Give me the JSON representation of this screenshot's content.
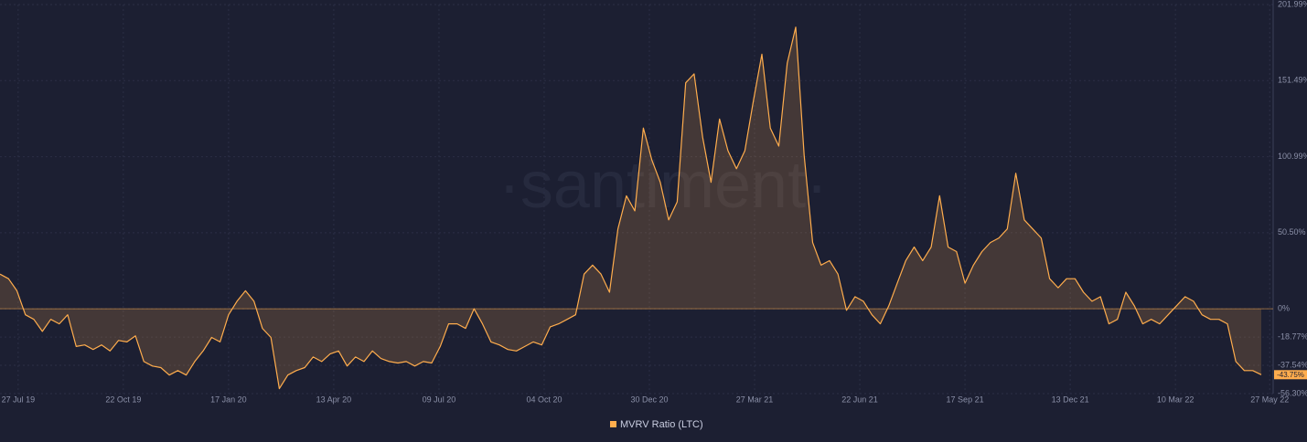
{
  "chart_data": {
    "type": "area",
    "watermark": "·santiment·",
    "x": [
      "2019-07-12",
      "2019-07-19",
      "2019-07-26",
      "2019-08-02",
      "2019-08-09",
      "2019-08-16",
      "2019-08-23",
      "2019-08-30",
      "2019-09-06",
      "2019-09-13",
      "2019-09-20",
      "2019-09-27",
      "2019-10-04",
      "2019-10-11",
      "2019-10-18",
      "2019-10-25",
      "2019-11-01",
      "2019-11-08",
      "2019-11-15",
      "2019-11-22",
      "2019-11-29",
      "2019-12-06",
      "2019-12-13",
      "2019-12-20",
      "2019-12-27",
      "2020-01-03",
      "2020-01-10",
      "2020-01-17",
      "2020-01-24",
      "2020-01-31",
      "2020-02-07",
      "2020-02-14",
      "2020-02-21",
      "2020-02-28",
      "2020-03-06",
      "2020-03-13",
      "2020-03-20",
      "2020-03-27",
      "2020-04-03",
      "2020-04-10",
      "2020-04-17",
      "2020-04-24",
      "2020-05-01",
      "2020-05-08",
      "2020-05-15",
      "2020-05-22",
      "2020-05-29",
      "2020-06-05",
      "2020-06-12",
      "2020-06-19",
      "2020-06-26",
      "2020-07-03",
      "2020-07-10",
      "2020-07-17",
      "2020-07-24",
      "2020-07-31",
      "2020-08-07",
      "2020-08-14",
      "2020-08-21",
      "2020-08-28",
      "2020-09-04",
      "2020-09-11",
      "2020-09-18",
      "2020-09-25",
      "2020-10-02",
      "2020-10-09",
      "2020-10-16",
      "2020-10-23",
      "2020-10-30",
      "2020-11-06",
      "2020-11-13",
      "2020-11-20",
      "2020-11-27",
      "2020-12-04",
      "2020-12-11",
      "2020-12-18",
      "2020-12-25",
      "2021-01-01",
      "2021-01-08",
      "2021-01-15",
      "2021-01-22",
      "2021-01-29",
      "2021-02-05",
      "2021-02-12",
      "2021-02-19",
      "2021-02-26",
      "2021-03-05",
      "2021-03-12",
      "2021-03-19",
      "2021-03-26",
      "2021-04-02",
      "2021-04-09",
      "2021-04-16",
      "2021-04-23",
      "2021-04-30",
      "2021-05-07",
      "2021-05-14",
      "2021-05-21",
      "2021-05-28",
      "2021-06-04",
      "2021-06-11",
      "2021-06-18",
      "2021-06-25",
      "2021-07-02",
      "2021-07-09",
      "2021-07-16",
      "2021-07-23",
      "2021-07-30",
      "2021-08-06",
      "2021-08-13",
      "2021-08-20",
      "2021-08-27",
      "2021-09-03",
      "2021-09-10",
      "2021-09-17",
      "2021-09-24",
      "2021-10-01",
      "2021-10-08",
      "2021-10-15",
      "2021-10-22",
      "2021-10-29",
      "2021-11-05",
      "2021-11-12",
      "2021-11-19",
      "2021-11-26",
      "2021-12-03",
      "2021-12-10",
      "2021-12-17",
      "2021-12-24",
      "2021-12-31",
      "2022-01-07",
      "2022-01-14",
      "2022-01-21",
      "2022-01-28",
      "2022-02-04",
      "2022-02-11",
      "2022-02-18",
      "2022-02-25",
      "2022-03-04",
      "2022-03-11",
      "2022-03-18",
      "2022-03-25",
      "2022-04-01",
      "2022-04-08",
      "2022-04-15",
      "2022-04-22",
      "2022-04-29",
      "2022-05-06",
      "2022-05-13",
      "2022-05-20"
    ],
    "series": [
      {
        "name": "MVRV Ratio (LTC)",
        "color": "#ffad4d",
        "values": [
          23,
          20,
          12,
          -4,
          -7,
          -15,
          -7,
          -10,
          -4,
          -25,
          -24,
          -27,
          -24,
          -28,
          -21,
          -22,
          -18,
          -35,
          -38,
          -39,
          -44,
          -41,
          -44,
          -35,
          -28,
          -19,
          -22,
          -4,
          5,
          12,
          5,
          -13,
          -19,
          -53,
          -44,
          -41,
          -39,
          -32,
          -35,
          -30,
          -28,
          -38,
          -32,
          -35,
          -28,
          -33,
          -35,
          -36,
          -35,
          -38,
          -35,
          -36,
          -25,
          -10,
          -10,
          -13,
          0,
          -10,
          -22,
          -24,
          -27,
          -28,
          -25,
          -22,
          -24,
          -12,
          -10,
          -7,
          -4,
          23,
          29,
          23,
          11,
          53,
          75,
          65,
          120,
          99,
          84,
          59,
          71,
          150,
          156,
          114,
          84,
          126,
          105,
          93,
          105,
          138,
          169,
          120,
          108,
          163,
          187,
          102,
          44,
          29,
          32,
          23,
          -1,
          8,
          5,
          -4,
          -10,
          2,
          17,
          32,
          41,
          32,
          41,
          75,
          41,
          38,
          17,
          29,
          38,
          44,
          47,
          53,
          90,
          59,
          53,
          47,
          20,
          14,
          20,
          20,
          11,
          5,
          8,
          -10,
          -7,
          11,
          2,
          -10,
          -7,
          -10,
          -4,
          2,
          8,
          5,
          -4,
          -7,
          -7,
          -10,
          -35,
          -41,
          -41,
          -43.75
        ]
      }
    ],
    "annotations": [
      {
        "x": "2022-05-20",
        "value": -43.75,
        "label": "-43.75%"
      }
    ],
    "xlim": [
      "2019-07-12",
      "2022-05-20"
    ],
    "xticks": [
      {
        "value": "2019-07-27",
        "label": "27 Jul 19"
      },
      {
        "value": "2019-10-22",
        "label": "22 Oct 19"
      },
      {
        "value": "2020-01-17",
        "label": "17 Jan 20"
      },
      {
        "value": "2020-04-13",
        "label": "13 Apr 20"
      },
      {
        "value": "2020-07-09",
        "label": "09 Jul 20"
      },
      {
        "value": "2020-10-04",
        "label": "04 Oct 20"
      },
      {
        "value": "2020-12-30",
        "label": "30 Dec 20"
      },
      {
        "value": "2021-03-27",
        "label": "27 Mar 21"
      },
      {
        "value": "2021-06-22",
        "label": "22 Jun 21"
      },
      {
        "value": "2021-09-17",
        "label": "17 Sep 21"
      },
      {
        "value": "2021-12-13",
        "label": "13 Dec 21"
      },
      {
        "value": "2022-03-10",
        "label": "10 Mar 22"
      },
      {
        "value": "2022-05-27",
        "label": "27 May 22"
      }
    ],
    "ylim": [
      -56.3,
      201.99
    ],
    "yticks": [
      {
        "value": 201.99,
        "label": "201.99%"
      },
      {
        "value": 151.49,
        "label": "151.49%"
      },
      {
        "value": 100.99,
        "label": "100.99%"
      },
      {
        "value": 50.5,
        "label": "50.50%"
      },
      {
        "value": 0,
        "label": "0%"
      },
      {
        "value": -18.77,
        "label": "-18.77%"
      },
      {
        "value": -37.54,
        "label": "-37.54%"
      },
      {
        "value": -56.3,
        "label": "-56.30%"
      }
    ],
    "grid": true,
    "legend": "bottom"
  }
}
